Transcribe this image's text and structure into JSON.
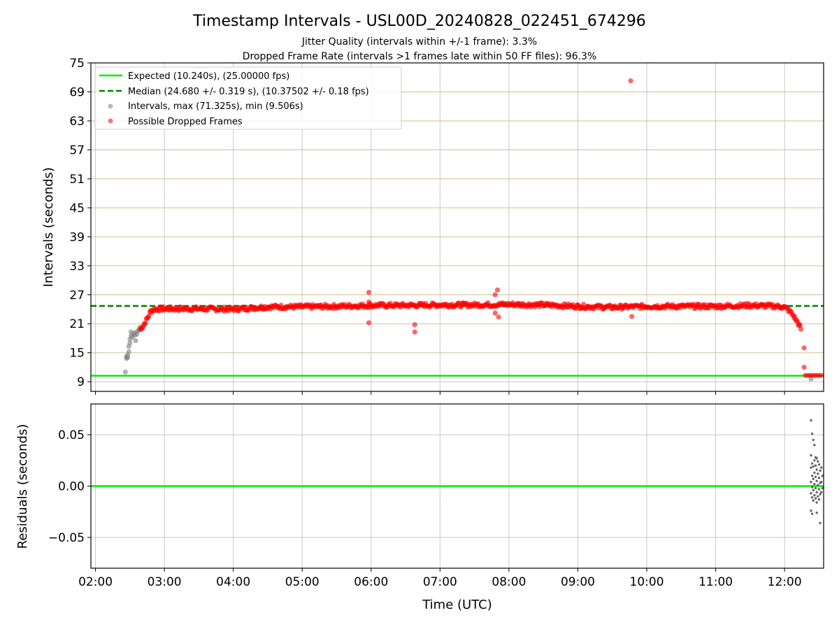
{
  "figure": {
    "title": "Timestamp Intervals - USL00D_20240828_022451_674296",
    "subtitle_1": "Jitter Quality (intervals within +/-1 frame): 3.3%",
    "subtitle_2": "Dropped Frame Rate (intervals >1 frames late within 50 FF files): 96.3%"
  },
  "colors": {
    "expected": "#00ee00",
    "median": "#008000",
    "intervals": "#808080",
    "dropped": "#ff0000",
    "hgrid_top": "#d2c08a",
    "grid": "#c8c8c8"
  },
  "chart_data": [
    {
      "type": "scatter",
      "panel": "intervals",
      "xlabel": "",
      "ylabel": "Intervals (seconds)",
      "xlim": [
        "01:56",
        "12:34"
      ],
      "ylim": [
        7,
        75
      ],
      "yticks": [
        9,
        15,
        21,
        27,
        33,
        39,
        45,
        51,
        57,
        63,
        69,
        75
      ],
      "xticks": [
        "02:00",
        "03:00",
        "04:00",
        "05:00",
        "06:00",
        "07:00",
        "08:00",
        "09:00",
        "10:00",
        "11:00",
        "12:00"
      ],
      "grid": true,
      "legend": {
        "position": "top-left",
        "entries": [
          "Expected (10.240s), (25.00000 fps)",
          "Median (24.680 +/- 0.319 s), (10.37502 +/- 0.18 fps)",
          "Intervals, max (71.325s), min (9.506s)",
          "Possible Dropped Frames"
        ]
      },
      "reference_lines": {
        "expected": 10.24,
        "median": 24.68
      },
      "series": [
        {
          "name": "Intervals, max (71.325s), min (9.506s)",
          "points": [
            [
              "02:26",
              11.0
            ],
            [
              "02:27",
              13.8
            ],
            [
              "02:27",
              14.2
            ],
            [
              "02:28",
              14.0
            ],
            [
              "02:28",
              14.5
            ],
            [
              "02:29",
              15.2
            ],
            [
              "02:29",
              16.3
            ],
            [
              "02:30",
              17.0
            ],
            [
              "02:30",
              17.8
            ],
            [
              "02:31",
              18.5
            ],
            [
              "02:31",
              19.3
            ],
            [
              "02:32",
              18.2
            ],
            [
              "02:33",
              19.0
            ],
            [
              "02:34",
              18.6
            ],
            [
              "02:35",
              17.5
            ],
            [
              "02:35",
              19.2
            ],
            [
              "02:36",
              18.8
            ],
            [
              "02:37",
              19.5
            ],
            [
              "02:38",
              19.9
            ],
            [
              "02:39",
              20.3
            ],
            [
              "12:23",
              9.6
            ]
          ]
        },
        {
          "name": "Possible Dropped Frames",
          "profile": [
            [
              "02:39",
              19.8
            ],
            [
              "02:42",
              20.8
            ],
            [
              "02:45",
              22.0
            ],
            [
              "02:48",
              23.6
            ],
            [
              "02:51",
              24.0
            ],
            [
              "03:00",
              24.1
            ],
            [
              "03:30",
              24.1
            ],
            [
              "04:00",
              24.0
            ],
            [
              "04:30",
              24.5
            ],
            [
              "05:00",
              24.5
            ],
            [
              "05:30",
              24.6
            ],
            [
              "06:00",
              24.8
            ],
            [
              "06:30",
              24.8
            ],
            [
              "07:00",
              24.9
            ],
            [
              "07:30",
              24.9
            ],
            [
              "08:00",
              25.0
            ],
            [
              "08:30",
              24.9
            ],
            [
              "09:00",
              24.6
            ],
            [
              "09:30",
              24.4
            ],
            [
              "10:00",
              24.6
            ],
            [
              "10:30",
              24.6
            ],
            [
              "11:00",
              24.6
            ],
            [
              "11:30",
              24.8
            ],
            [
              "11:55",
              24.6
            ],
            [
              "12:00",
              24.4
            ],
            [
              "12:05",
              23.5
            ],
            [
              "12:09",
              22.2
            ],
            [
              "12:12",
              21.0
            ],
            [
              "12:15",
              19.6
            ]
          ],
          "outliers": [
            [
              "05:58",
              27.5
            ],
            [
              "05:58",
              25.5
            ],
            [
              "05:58",
              21.2
            ],
            [
              "06:38",
              20.8
            ],
            [
              "06:38",
              19.3
            ],
            [
              "07:48",
              27.0
            ],
            [
              "07:50",
              28.0
            ],
            [
              "07:48",
              23.2
            ],
            [
              "07:51",
              22.4
            ],
            [
              "09:46",
              71.3
            ],
            [
              "09:47",
              22.5
            ],
            [
              "12:17",
              16.0
            ],
            [
              "12:17",
              12.0
            ],
            [
              "12:18",
              10.3
            ],
            [
              "12:20",
              10.3
            ],
            [
              "12:22",
              10.3
            ],
            [
              "12:24",
              10.3
            ],
            [
              "12:26",
              10.3
            ],
            [
              "12:28",
              10.3
            ],
            [
              "12:30",
              10.3
            ],
            [
              "12:32",
              10.3
            ]
          ]
        }
      ]
    },
    {
      "type": "scatter",
      "panel": "residuals",
      "xlabel": "Time (UTC)",
      "ylabel": "Residuals (seconds)",
      "ylim": [
        -0.08,
        0.08
      ],
      "yticks": [
        "0.05",
        "0.00",
        "−0.05"
      ],
      "ytick_values": [
        0.05,
        0.0,
        -0.05
      ],
      "xticks": [
        "02:00",
        "03:00",
        "04:00",
        "05:00",
        "06:00",
        "07:00",
        "08:00",
        "09:00",
        "10:00",
        "11:00",
        "12:00"
      ],
      "zero_line": 0.0,
      "series": [
        {
          "name": "",
          "points": [
            [
              "12:23",
              0.064
            ],
            [
              "12:24",
              0.051
            ],
            [
              "12:25",
              0.045
            ],
            [
              "12:26",
              0.04
            ],
            [
              "12:23",
              0.03
            ],
            [
              "12:27",
              0.028
            ],
            [
              "12:28",
              0.027
            ],
            [
              "12:26",
              0.025
            ],
            [
              "12:29",
              0.024
            ],
            [
              "12:24",
              0.022
            ],
            [
              "12:30",
              0.021
            ],
            [
              "12:27",
              0.02
            ],
            [
              "12:25",
              0.019
            ],
            [
              "12:23",
              0.018
            ],
            [
              "12:28",
              0.016
            ],
            [
              "12:31",
              0.015
            ],
            [
              "12:26",
              0.013
            ],
            [
              "12:29",
              0.012
            ],
            [
              "12:24",
              0.01
            ],
            [
              "12:27",
              0.009
            ],
            [
              "12:30",
              0.008
            ],
            [
              "12:25",
              0.007
            ],
            [
              "12:28",
              0.005
            ],
            [
              "12:23",
              0.004
            ],
            [
              "12:31",
              0.003
            ],
            [
              "12:26",
              0.002
            ],
            [
              "12:29",
              0.001
            ],
            [
              "12:24",
              -0.001
            ],
            [
              "12:27",
              -0.002
            ],
            [
              "12:30",
              -0.003
            ],
            [
              "12:25",
              -0.004
            ],
            [
              "12:28",
              -0.006
            ],
            [
              "12:23",
              -0.007
            ],
            [
              "12:31",
              -0.008
            ],
            [
              "12:26",
              -0.009
            ],
            [
              "12:29",
              -0.01
            ],
            [
              "12:24",
              -0.011
            ],
            [
              "12:27",
              -0.012
            ],
            [
              "12:30",
              -0.013
            ],
            [
              "12:25",
              -0.014
            ],
            [
              "12:28",
              -0.016
            ],
            [
              "12:23",
              -0.024
            ],
            [
              "12:24",
              -0.027
            ],
            [
              "12:28",
              -0.026
            ],
            [
              "12:31",
              -0.036
            ],
            [
              "12:32",
              0.018
            ],
            [
              "12:32",
              0.004
            ],
            [
              "12:32",
              -0.006
            ],
            [
              "12:33",
              0.01
            ],
            [
              "12:33",
              -0.002
            ]
          ]
        }
      ]
    }
  ]
}
